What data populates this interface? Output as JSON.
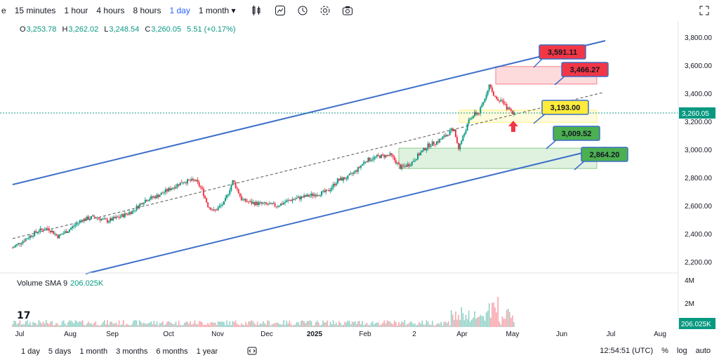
{
  "toolbar": {
    "partial_item": "e",
    "timeframes": [
      "15 minutes",
      "1 hour",
      "4 hours",
      "8 hours",
      "1 day",
      "1 month"
    ],
    "active_timeframe": "1 day",
    "icons": [
      "indicators-icon",
      "compare-icon",
      "alert-icon",
      "settings-icon",
      "snapshot-icon",
      "fullscreen-icon"
    ]
  },
  "ohlc": {
    "open_label": "O",
    "open": "3,253.78",
    "high_label": "H",
    "high": "3,262.02",
    "low_label": "L",
    "low": "3,248.54",
    "close_label": "C",
    "close": "3,260.05",
    "change": "5.51 (+0.17%)"
  },
  "volume": {
    "label": "Volume SMA 9",
    "value": "206.025K"
  },
  "bottom_bar": {
    "ranges": [
      "1 day",
      "5 days",
      "1 month",
      "3 months",
      "6 months",
      "1 year"
    ],
    "time": "12:54:51 (UTC)",
    "percent": "%",
    "log": "log",
    "auto": "auto"
  },
  "colors": {
    "up": "#089981",
    "down": "#f23645",
    "channel": "#3d6fc9",
    "accent": "#2962ff"
  },
  "chart_data": {
    "type": "candlestick",
    "price_axis": {
      "ticks": [
        "3,800.00",
        "3,600.00",
        "3,400.00",
        "3,200.00",
        "3,000.00",
        "2,800.00",
        "2,600.00",
        "2,400.00",
        "2,200.00"
      ],
      "range": [
        2150,
        3900
      ]
    },
    "volume_axis": {
      "ticks": [
        "4M",
        "2M"
      ]
    },
    "time_axis": {
      "labels": [
        "Jul",
        "Aug",
        "Sep",
        "Oct",
        "Nov",
        "Dec",
        "2025",
        "Feb",
        "2",
        "Apr",
        "May",
        "Jun",
        "Jul",
        "Aug"
      ]
    },
    "last_price": "3,260.05",
    "last_volume": "206.025K",
    "levels": [
      {
        "label": "3,591.11",
        "value": 3591.11,
        "color": "#f23645"
      },
      {
        "label": "3,466.27",
        "value": 3466.27,
        "color": "#f23645"
      },
      {
        "label": "3,193.00",
        "value": 3193.0,
        "color": "#ffeb3b"
      },
      {
        "label": "3,009.52",
        "value": 3009.52,
        "color": "#4caf50"
      },
      {
        "label": "2,864.20",
        "value": 2864.2,
        "color": "#4caf50"
      }
    ],
    "zones": [
      {
        "name": "resistance",
        "from": 3466.27,
        "to": 3591.11,
        "start": "Apr",
        "color": "#f23645"
      },
      {
        "name": "pivot",
        "from": 3193.0,
        "to": 3280.0,
        "start": "Apr",
        "color": "#ffeb3b"
      },
      {
        "name": "support",
        "from": 2864.2,
        "to": 3009.52,
        "start": "Feb",
        "color": "#4caf50"
      }
    ],
    "series_path": [
      [
        0,
        2300
      ],
      [
        10,
        2360
      ],
      [
        20,
        2420
      ],
      [
        28,
        2440
      ],
      [
        36,
        2380
      ],
      [
        45,
        2430
      ],
      [
        55,
        2500
      ],
      [
        65,
        2520
      ],
      [
        75,
        2490
      ],
      [
        85,
        2520
      ],
      [
        95,
        2560
      ],
      [
        105,
        2640
      ],
      [
        115,
        2670
      ],
      [
        125,
        2720
      ],
      [
        135,
        2770
      ],
      [
        145,
        2780
      ],
      [
        150,
        2720
      ],
      [
        155,
        2600
      ],
      [
        160,
        2560
      ],
      [
        168,
        2620
      ],
      [
        175,
        2780
      ],
      [
        182,
        2640
      ],
      [
        190,
        2620
      ],
      [
        200,
        2610
      ],
      [
        210,
        2600
      ],
      [
        220,
        2640
      ],
      [
        230,
        2660
      ],
      [
        240,
        2680
      ],
      [
        250,
        2700
      ],
      [
        258,
        2780
      ],
      [
        266,
        2800
      ],
      [
        274,
        2860
      ],
      [
        280,
        2920
      ],
      [
        290,
        2950
      ],
      [
        300,
        2960
      ],
      [
        308,
        2870
      ],
      [
        316,
        2900
      ],
      [
        322,
        2960
      ],
      [
        330,
        3030
      ],
      [
        338,
        3060
      ],
      [
        344,
        3100
      ],
      [
        350,
        3150
      ],
      [
        354,
        3010
      ],
      [
        358,
        3100
      ],
      [
        362,
        3200
      ],
      [
        366,
        3250
      ],
      [
        370,
        3260
      ],
      [
        374,
        3340
      ],
      [
        378,
        3460
      ],
      [
        382,
        3380
      ],
      [
        386,
        3360
      ],
      [
        390,
        3320
      ],
      [
        394,
        3280
      ],
      [
        398,
        3260
      ]
    ]
  }
}
